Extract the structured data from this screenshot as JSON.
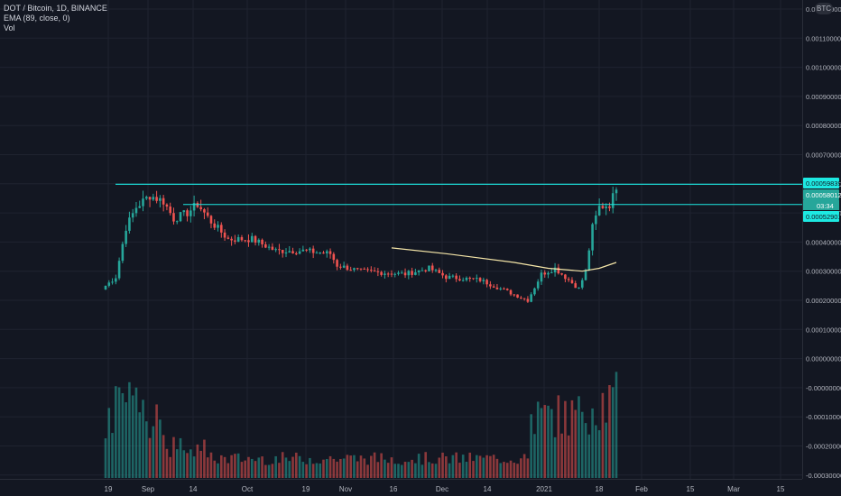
{
  "legend": {
    "symbol_line": "DOT / Bitcoin, 1D, BINANCE",
    "ema_line": "EMA (89, close, 0)",
    "vol_line": "Vol"
  },
  "scale_badge": "BTC",
  "price_labels": {
    "resistance_top": "0.00059839",
    "last_price": "0.00058012",
    "countdown": "03:34",
    "resistance_low": "0.00052901"
  },
  "colors": {
    "background": "#131722",
    "up": "#26a69a",
    "down": "#ef5350",
    "resistance_line": "#1de9e2",
    "ema_line": "#f5e6a8",
    "grid": "#1f2330"
  },
  "chart_data": {
    "type": "candlestick",
    "title": "DOT / Bitcoin, 1D, BINANCE",
    "indicators": [
      "EMA (89, close, 0)",
      "Vol"
    ],
    "y_ticks": [
      "0.00120000",
      "0.00110000",
      "0.00100000",
      "0.00090000",
      "0.00080000",
      "0.00070000",
      "0.00060000",
      "0.00050000",
      "0.00040000",
      "0.00030000",
      "0.00020000",
      "0.00010000",
      "0.00000000",
      "-0.00000000",
      "-0.00010000",
      "-0.00020000",
      "-0.00030000",
      "-0.00040000"
    ],
    "x_ticks": [
      "19",
      "Sep",
      "14",
      "Oct",
      "19",
      "Nov",
      "16",
      "Dec",
      "14",
      "2021",
      "18",
      "Feb",
      "15",
      "Mar",
      "15"
    ],
    "y_range": [
      -0.00041,
      0.00126
    ],
    "horizontal_lines": [
      0.00059839,
      0.00052901
    ],
    "price_anchors": [
      {
        "day": 0,
        "close": 0.00025
      },
      {
        "day": 3,
        "close": 0.00028
      },
      {
        "day": 6,
        "close": 0.00045
      },
      {
        "day": 9,
        "close": 0.00052
      },
      {
        "day": 13,
        "close": 0.00056
      },
      {
        "day": 17,
        "close": 0.00054
      },
      {
        "day": 20,
        "close": 0.00048
      },
      {
        "day": 24,
        "close": 0.0005
      },
      {
        "day": 27,
        "close": 0.00053
      },
      {
        "day": 31,
        "close": 0.00047
      },
      {
        "day": 36,
        "close": 0.00041
      },
      {
        "day": 43,
        "close": 0.00041
      },
      {
        "day": 50,
        "close": 0.00037
      },
      {
        "day": 58,
        "close": 0.00037
      },
      {
        "day": 66,
        "close": 0.00036
      },
      {
        "day": 68,
        "close": 0.00032
      },
      {
        "day": 75,
        "close": 0.0003
      },
      {
        "day": 88,
        "close": 0.00029
      },
      {
        "day": 95,
        "close": 0.00031
      },
      {
        "day": 100,
        "close": 0.00028
      },
      {
        "day": 110,
        "close": 0.00027
      },
      {
        "day": 118,
        "close": 0.00023
      },
      {
        "day": 124,
        "close": 0.0002
      },
      {
        "day": 128,
        "close": 0.00029
      },
      {
        "day": 132,
        "close": 0.00031
      },
      {
        "day": 135,
        "close": 0.00028
      },
      {
        "day": 139,
        "close": 0.00024
      },
      {
        "day": 141,
        "close": 0.0003
      },
      {
        "day": 143,
        "close": 0.00045
      },
      {
        "day": 145,
        "close": 0.00052
      },
      {
        "day": 148,
        "close": 0.00053
      },
      {
        "day": 150,
        "close": 0.00058
      }
    ],
    "ema_points": [
      {
        "day": 84,
        "value": 0.00038
      },
      {
        "day": 100,
        "value": 0.00036
      },
      {
        "day": 120,
        "value": 0.00033
      },
      {
        "day": 130,
        "value": 0.00031
      },
      {
        "day": 140,
        "value": 0.0003
      },
      {
        "day": 145,
        "value": 0.00031
      },
      {
        "day": 150,
        "value": 0.00033
      }
    ]
  }
}
